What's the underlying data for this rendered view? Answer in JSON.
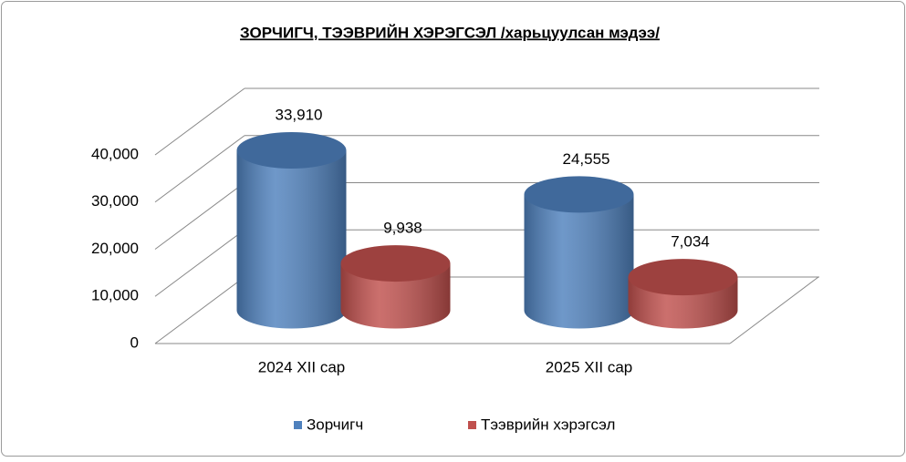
{
  "chart_data": {
    "type": "bar3d-cylinder",
    "title": "ЗОРЧИГЧ, ТЭЭВРИЙН ХЭРЭГСЭЛ /харьцуулсан мэдээ/",
    "categories": [
      "2024 XII сар",
      "2025 XII сар"
    ],
    "series": [
      {
        "name": "Зорчигч",
        "color": "#4f81bd",
        "values": [
          33910,
          24555
        ],
        "value_labels": [
          "33,910",
          "24,555"
        ]
      },
      {
        "name": "Тээврийн хэрэгсэл",
        "color": "#c0504d",
        "values": [
          9938,
          7034
        ],
        "value_labels": [
          "9,938",
          "7,034"
        ]
      }
    ],
    "ylim": [
      0,
      40000
    ],
    "yticks": [
      0,
      {
        "value": 10000,
        "label": "10,000"
      },
      {
        "value": 20000,
        "label": "20,000"
      },
      {
        "value": 30000,
        "label": "30,000"
      },
      {
        "value": 40000,
        "label": "40,000"
      }
    ],
    "grid": true,
    "legend": "bottom"
  }
}
